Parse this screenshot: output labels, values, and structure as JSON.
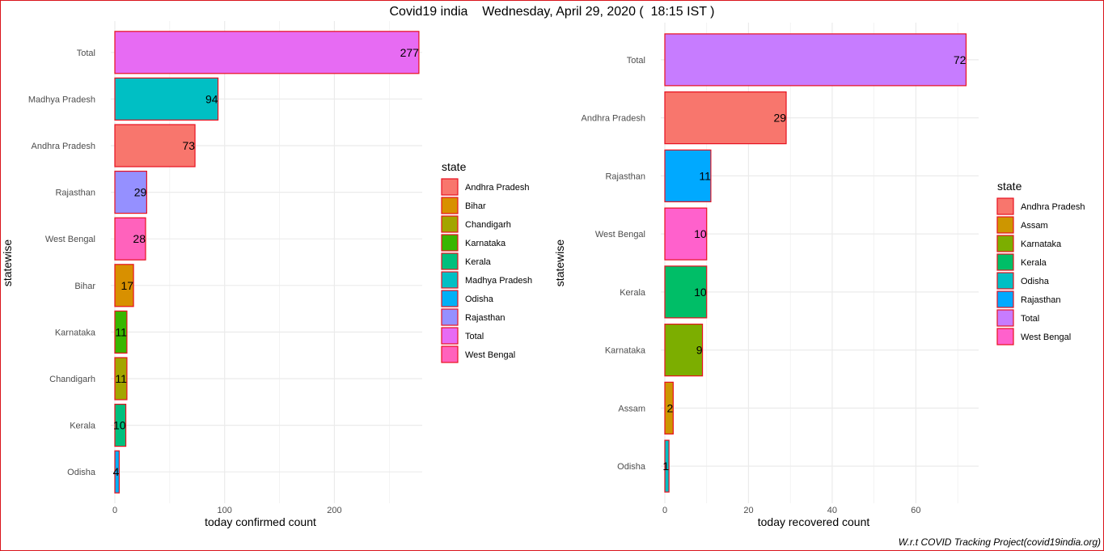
{
  "title": "Covid19 india    Wednesday, April 29, 2020 (  18:15 IST )",
  "caption": "W.r.t COVID Tracking Project(covid19india.org)",
  "chart_data": [
    {
      "type": "bar",
      "orientation": "horizontal",
      "xlabel": "today confirmed count",
      "ylabel": "statewise",
      "xlim": [
        0,
        280
      ],
      "xticks": [
        0,
        100,
        200
      ],
      "grid": true,
      "legend_title": "state",
      "legend_position": "right",
      "categories": [
        "Total",
        "Madhya Pradesh",
        "Andhra Pradesh",
        "Rajasthan",
        "West Bengal",
        "Bihar",
        "Karnataka",
        "Chandigarh",
        "Kerala",
        "Odisha"
      ],
      "values": [
        277,
        94,
        73,
        29,
        28,
        17,
        11,
        11,
        10,
        4
      ],
      "colors": [
        "#E76BF3",
        "#00BFC4",
        "#F8766D",
        "#9590FF",
        "#FF62BC",
        "#D89000",
        "#39B600",
        "#A3A500",
        "#00BF7D",
        "#00B0F6"
      ],
      "legend": [
        {
          "label": "Andhra Pradesh",
          "color": "#F8766D"
        },
        {
          "label": "Bihar",
          "color": "#D89000"
        },
        {
          "label": "Chandigarh",
          "color": "#A3A500"
        },
        {
          "label": "Karnataka",
          "color": "#39B600"
        },
        {
          "label": "Kerala",
          "color": "#00BF7D"
        },
        {
          "label": "Madhya Pradesh",
          "color": "#00BFC4"
        },
        {
          "label": "Odisha",
          "color": "#00B0F6"
        },
        {
          "label": "Rajasthan",
          "color": "#9590FF"
        },
        {
          "label": "Total",
          "color": "#E76BF3"
        },
        {
          "label": "West Bengal",
          "color": "#FF62BC"
        }
      ]
    },
    {
      "type": "bar",
      "orientation": "horizontal",
      "xlabel": "today recovered count",
      "ylabel": "statewise",
      "xlim": [
        0,
        75
      ],
      "xticks": [
        0,
        20,
        40,
        60
      ],
      "grid": true,
      "legend_title": "state",
      "legend_position": "right",
      "categories": [
        "Total",
        "Andhra Pradesh",
        "Rajasthan",
        "West Bengal",
        "Kerala",
        "Karnataka",
        "Assam",
        "Odisha"
      ],
      "values": [
        72,
        29,
        11,
        10,
        10,
        9,
        2,
        1
      ],
      "colors": [
        "#C77CFF",
        "#F8766D",
        "#00A9FF",
        "#FF61CC",
        "#00BE67",
        "#7CAE00",
        "#CD9600",
        "#00BFC4"
      ],
      "legend": [
        {
          "label": "Andhra Pradesh",
          "color": "#F8766D"
        },
        {
          "label": "Assam",
          "color": "#CD9600"
        },
        {
          "label": "Karnataka",
          "color": "#7CAE00"
        },
        {
          "label": "Kerala",
          "color": "#00BE67"
        },
        {
          "label": "Odisha",
          "color": "#00BFC4"
        },
        {
          "label": "Rajasthan",
          "color": "#00A9FF"
        },
        {
          "label": "Total",
          "color": "#C77CFF"
        },
        {
          "label": "West Bengal",
          "color": "#FF61CC"
        }
      ]
    }
  ]
}
